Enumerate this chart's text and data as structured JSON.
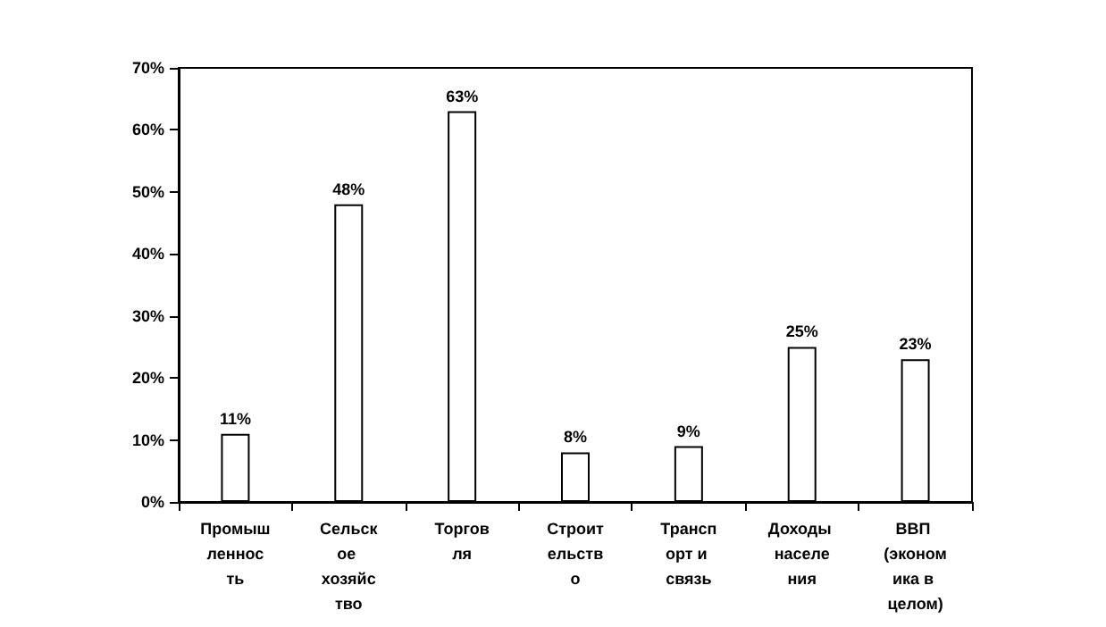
{
  "chart_data": {
    "type": "bar",
    "categories": [
      "Промышленность",
      "Сельское хозяйство",
      "Торговля",
      "Строительство",
      "Транспорт и связь",
      "Доходы населения",
      "ВВП (экономика в целом)"
    ],
    "values": [
      11,
      48,
      63,
      8,
      9,
      25,
      23
    ],
    "value_labels": [
      "11%",
      "48%",
      "63%",
      "8%",
      "9%",
      "25%",
      "23%"
    ],
    "color": "#ffffff",
    "ylim": [
      0,
      70
    ],
    "yticks": [
      {
        "value": 0,
        "label": "0%"
      },
      {
        "value": 10,
        "label": "10%"
      },
      {
        "value": 20,
        "label": "20%"
      },
      {
        "value": 30,
        "label": "30%"
      },
      {
        "value": 40,
        "label": "40%"
      },
      {
        "value": 50,
        "label": "50%"
      },
      {
        "value": 60,
        "label": "60%"
      },
      {
        "value": 70,
        "label": "70%"
      }
    ],
    "grid": false
  }
}
